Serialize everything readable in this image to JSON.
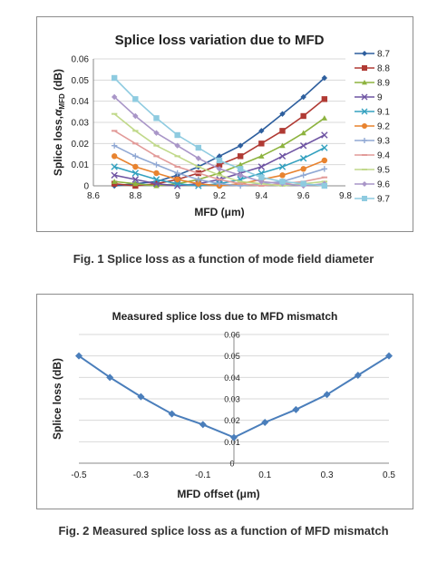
{
  "captions": {
    "fig1": "Fig. 1 Splice loss as a function of mode field diameter",
    "fig2": "Fig. 2 Measured splice loss as a function of MFD mismatch"
  },
  "chart_data": [
    {
      "type": "line",
      "title": "Splice loss variation due to MFD",
      "xlabel": "MFD (μm)",
      "ylabel_main": "Splice loss,",
      "ylabel_alpha": "α",
      "ylabel_sub": "MFD",
      "ylabel_unit": " (dB)",
      "x": [
        8.7,
        8.8,
        8.9,
        9.0,
        9.1,
        9.2,
        9.3,
        9.4,
        9.5,
        9.6,
        9.7
      ],
      "xlim": [
        8.6,
        9.8
      ],
      "ylim": [
        0,
        0.06
      ],
      "xticks": [
        "8.6",
        "8.8",
        "9",
        "9.2",
        "9.4",
        "9.6",
        "9.8"
      ],
      "yticks": [
        "0",
        "0.01",
        "0.02",
        "0.03",
        "0.04",
        "0.05",
        "0.06"
      ],
      "grid": "horizontal",
      "legend_position": "right",
      "series": [
        {
          "name": "8.7",
          "color": "#2e5f9e",
          "marker": "diamond",
          "values": [
            0,
            0.001,
            0.002,
            0.005,
            0.009,
            0.014,
            0.019,
            0.026,
            0.034,
            0.042,
            0.051
          ]
        },
        {
          "name": "8.8",
          "color": "#b03a34",
          "marker": "square",
          "values": [
            0.001,
            0,
            0.001,
            0.003,
            0.006,
            0.01,
            0.014,
            0.02,
            0.026,
            0.033,
            0.041
          ]
        },
        {
          "name": "8.9",
          "color": "#8db33f",
          "marker": "triangle",
          "values": [
            0.002,
            0.001,
            0,
            0.001,
            0.003,
            0.006,
            0.01,
            0.014,
            0.019,
            0.025,
            0.032
          ]
        },
        {
          "name": "9",
          "color": "#6f55a3",
          "marker": "x",
          "values": [
            0.005,
            0.003,
            0.001,
            0,
            0.001,
            0.003,
            0.006,
            0.009,
            0.014,
            0.019,
            0.024
          ]
        },
        {
          "name": "9.1",
          "color": "#34a1bf",
          "marker": "x",
          "values": [
            0.009,
            0.006,
            0.003,
            0.001,
            0,
            0.001,
            0.003,
            0.006,
            0.009,
            0.013,
            0.018
          ]
        },
        {
          "name": "9.2",
          "color": "#e8832f",
          "marker": "circle",
          "values": [
            0.014,
            0.009,
            0.006,
            0.003,
            0.001,
            0,
            0.001,
            0.003,
            0.005,
            0.008,
            0.012
          ]
        },
        {
          "name": "9.3",
          "color": "#91a9d4",
          "marker": "plus",
          "values": [
            0.019,
            0.014,
            0.01,
            0.006,
            0.003,
            0.001,
            0,
            0.001,
            0.002,
            0.005,
            0.008
          ]
        },
        {
          "name": "9.4",
          "color": "#e29b99",
          "marker": "dash",
          "values": [
            0.026,
            0.02,
            0.014,
            0.009,
            0.006,
            0.003,
            0.001,
            0,
            0.001,
            0.002,
            0.004
          ]
        },
        {
          "name": "9.5",
          "color": "#c1d98b",
          "marker": "dash",
          "values": [
            0.034,
            0.026,
            0.019,
            0.014,
            0.009,
            0.005,
            0.002,
            0.001,
            0,
            0.001,
            0.002
          ]
        },
        {
          "name": "9.6",
          "color": "#a996c8",
          "marker": "diamond",
          "values": [
            0.042,
            0.033,
            0.025,
            0.019,
            0.013,
            0.008,
            0.005,
            0.002,
            0.001,
            0,
            0.001
          ]
        },
        {
          "name": "9.7",
          "color": "#8ecbe0",
          "marker": "square",
          "values": [
            0.051,
            0.041,
            0.032,
            0.024,
            0.018,
            0.012,
            0.008,
            0.004,
            0.002,
            0.001,
            0
          ]
        }
      ]
    },
    {
      "type": "line",
      "title": "Measured splice loss due to MFD mismatch",
      "xlabel": "MFD offset (μm)",
      "ylabel": "Splice loss (dB)",
      "x": [
        -0.5,
        -0.4,
        -0.3,
        -0.2,
        -0.1,
        0,
        0.1,
        0.2,
        0.3,
        0.4,
        0.5
      ],
      "values": [
        0.05,
        0.04,
        0.031,
        0.023,
        0.018,
        0.012,
        0.019,
        0.025,
        0.032,
        0.041,
        0.05
      ],
      "xlim": [
        -0.5,
        0.5
      ],
      "ylim": [
        0,
        0.06
      ],
      "xticks": [
        "-0.5",
        "-0.3",
        "-0.1",
        "0.1",
        "0.3",
        "0.5"
      ],
      "yticks": [
        "0",
        "0.01",
        "0.02",
        "0.03",
        "0.04",
        "0.05",
        "0.06"
      ],
      "grid": "horizontal",
      "color": "#4a7ebb",
      "marker": "diamond"
    }
  ]
}
